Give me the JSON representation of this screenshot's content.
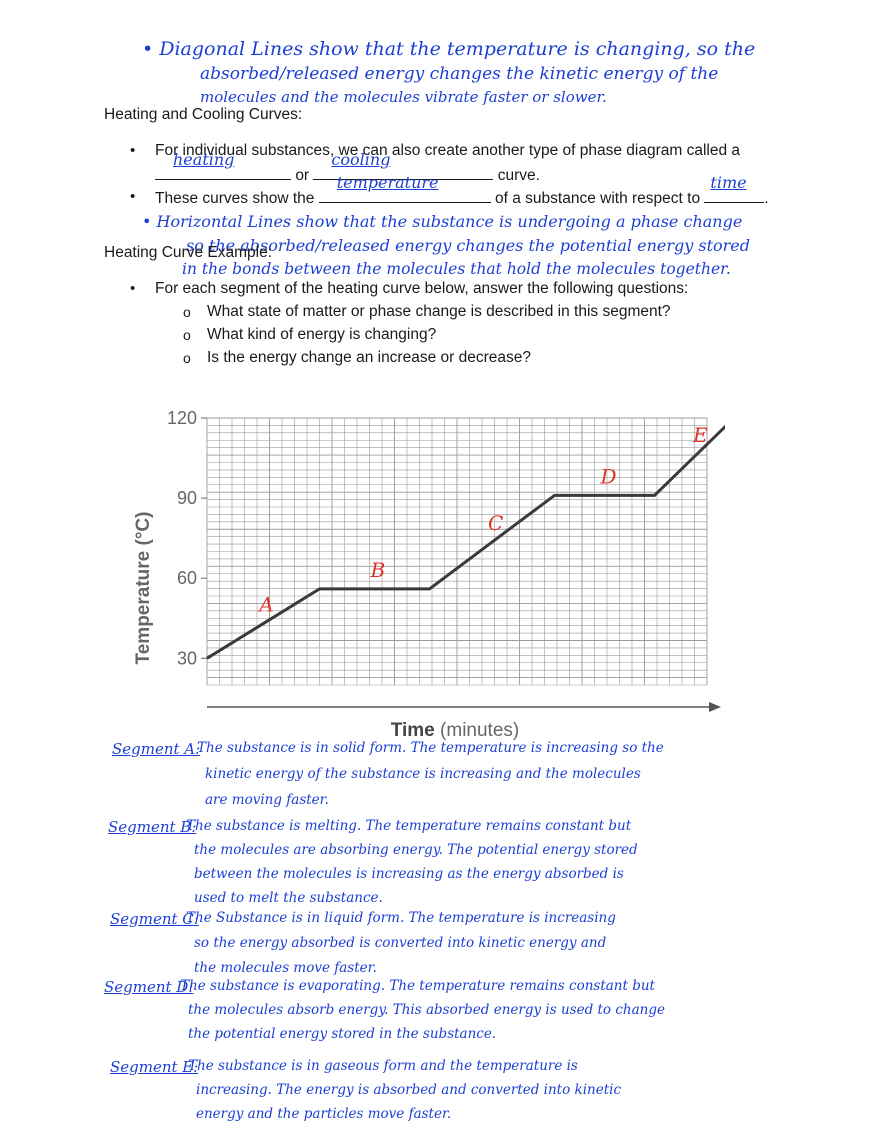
{
  "notes_top": {
    "line1": "• Diagonal Lines show that the temperature is changing, so the",
    "line2": "absorbed/released energy changes the kinetic energy of the",
    "line3": "molecules and the molecules vibrate faster or slower."
  },
  "section1": {
    "heading": "Heating and Cooling Curves:",
    "bullet1": {
      "text_a": "For individual substances, we can also create another type of phase diagram called a",
      "text_b_mid": "or",
      "text_b_end": "curve.",
      "fill1": "heating",
      "fill2": "cooling"
    },
    "bullet2": {
      "text_a": "These curves show the",
      "text_mid": "of a substance with respect to",
      "text_end": ".",
      "fill1": "temperature",
      "fill2": "time"
    }
  },
  "notes_mid": {
    "line1": "• Horizontal Lines show that the substance is undergoing a phase change",
    "line2": "so the absorbed/released energy changes the potential energy stored",
    "line3": "in the bonds between the molecules that hold the molecules together."
  },
  "section2": {
    "heading": "Heating Curve Example:",
    "bullet": "For each segment of the heating curve below, answer the following questions:",
    "questions": [
      "What state of matter or phase change is described in this segment?",
      "What kind of energy is changing?",
      "Is the energy change an increase or decrease?"
    ]
  },
  "chart_data": {
    "type": "line",
    "ylabel": "Temperature (°C)",
    "xlabel_bold": "Time",
    "xlabel_unit": "(minutes)",
    "yticks": [
      "120",
      "90",
      "60",
      "30"
    ],
    "ylim": [
      20,
      120
    ],
    "xlim": [
      0,
      20
    ],
    "grid": true,
    "series": [
      {
        "x": [
          0,
          4.5,
          8.9,
          13.9,
          17.9,
          21.3
        ],
        "y": [
          30,
          56,
          56,
          91,
          91,
          122
        ]
      }
    ],
    "segment_labels": [
      "A",
      "B",
      "C",
      "D",
      "E"
    ],
    "colors": {
      "line": "#3a3a3a",
      "grid": "#9a9a9a",
      "labels": "#e0302a"
    }
  },
  "answers": [
    {
      "label": "Segment A:",
      "lines": [
        "The substance is in solid form. The temperature is increasing so the",
        "kinetic energy of the substance is increasing and the molecules",
        "are moving faster."
      ]
    },
    {
      "label": "Segment B:",
      "lines": [
        "The substance is melting. The temperature remains constant but",
        "the molecules are absorbing energy. The potential energy stored",
        "between the molecules is increasing as the energy absorbed is",
        "used to melt the substance."
      ]
    },
    {
      "label": "Segment C:",
      "lines": [
        "The Substance is in liquid form. The temperature is increasing",
        "so the energy absorbed is converted into kinetic energy and",
        "the molecules move faster."
      ]
    },
    {
      "label": "Segment D:",
      "lines": [
        "The substance is evaporating. The temperature remains constant but",
        "the molecules absorb energy. This absorbed energy is used to change",
        "the potential energy stored in the substance."
      ]
    },
    {
      "label": "Segment E:",
      "lines": [
        "The substance is in gaseous form and the temperature is",
        "increasing. The energy is absorbed and converted into kinetic",
        "energy and the particles move faster."
      ]
    }
  ]
}
